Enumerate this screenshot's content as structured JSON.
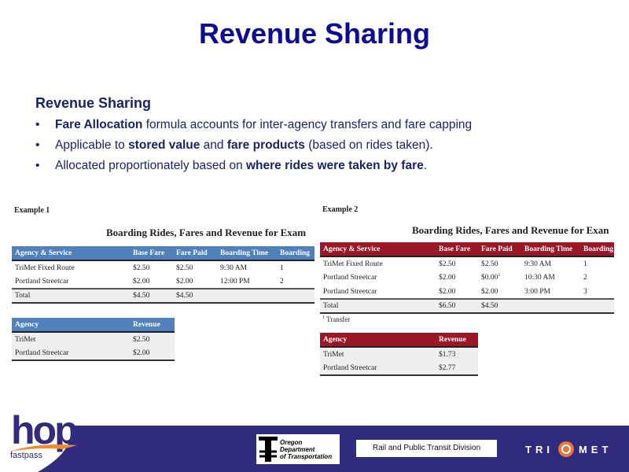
{
  "title": "Revenue Sharing",
  "subtitle": "Revenue Sharing",
  "bullets": [
    {
      "b1": "Fare Allocation",
      "t1": " formula accounts for inter-agency transfers and fare capping"
    },
    {
      "t0": "Applicable to ",
      "b1": "stored value",
      "t1": " and ",
      "b2": "fare products",
      "t2": " (based on rides taken)."
    },
    {
      "t0": "Allocated proportionately based on ",
      "b1": "where rides were taken by fare",
      "t1": "."
    }
  ],
  "bullet_char": "•",
  "example1": {
    "label": "Example 1",
    "caption": "Boarding Rides, Fares and Revenue for Exam",
    "headers": [
      "Agency & Service",
      "Base Fare",
      "Fare Paid",
      "Boarding Time",
      "Boarding"
    ],
    "rows": [
      [
        "TriMet Fixed Route",
        "$2.50",
        "$2.50",
        "9:30 AM",
        "1"
      ],
      [
        "Portland Streetcar",
        "$2.00",
        "$2.00",
        "12:00 PM",
        "2"
      ]
    ],
    "total": [
      "Total",
      "$4.50",
      "$4.50",
      "",
      ""
    ],
    "rev_headers": [
      "Agency",
      "Revenue"
    ],
    "rev_rows": [
      [
        "TriMet",
        "$2.50"
      ],
      [
        "Portland Streetcar",
        "$2.00"
      ]
    ],
    "color": "#4f81bd"
  },
  "example2": {
    "label": "Example 2",
    "caption": "Boarding Rides, Fares and Revenue for Exan",
    "headers": [
      "Agency & Service",
      "Base Fare",
      "Fare Paid",
      "Boarding Time",
      "Boarding"
    ],
    "rows": [
      [
        "TriMet Fixed Route",
        "$2.50",
        "$2.50",
        "9:30 AM",
        "1"
      ],
      [
        "Portland Streetcar",
        "$2.00",
        "$0.00",
        "10:30 AM",
        "2"
      ],
      [
        "Portland Streetcar",
        "$2.00",
        "$2.00",
        "3:00 PM",
        "3"
      ]
    ],
    "footnote_mark": "1",
    "total": [
      "Total",
      "$6.50",
      "$4.50",
      "",
      ""
    ],
    "footnote": "Transfer",
    "rev_headers": [
      "Agency",
      "Revenue"
    ],
    "rev_rows": [
      [
        "TriMet",
        "$1.73"
      ],
      [
        "Portland Streetcar",
        "$2.77"
      ]
    ],
    "color": "#9b1626"
  },
  "footer": {
    "hop_logo": "hop",
    "hop_tag": "fastpass",
    "odot": [
      "Oregon",
      "Department",
      "of Transportation"
    ],
    "division": "Rail and Public Transit Division",
    "trimet_left": "TRI",
    "trimet_right": "MET",
    "color": "#302b7d"
  }
}
